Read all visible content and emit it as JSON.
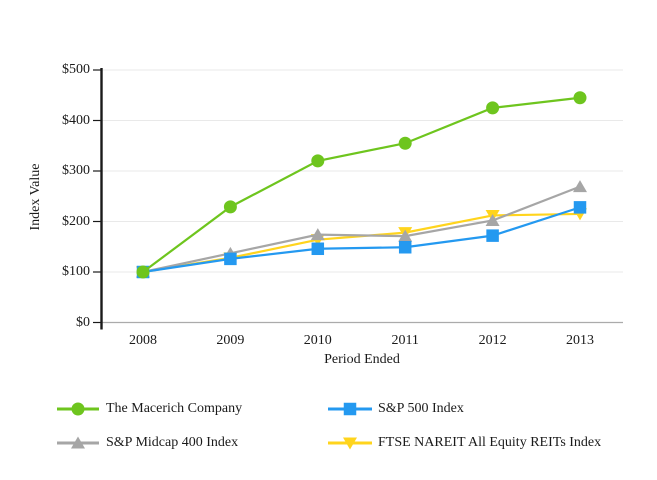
{
  "page": {
    "background": "#FFFFFF"
  },
  "chart_data": {
    "type": "line",
    "title": "",
    "xlabel": "Period Ended",
    "ylabel": "Index Value",
    "categories": [
      "2008",
      "2009",
      "2010",
      "2011",
      "2012",
      "2013"
    ],
    "ylim": [
      0,
      500
    ],
    "yticks": [
      0,
      100,
      200,
      300,
      400,
      500
    ],
    "ytick_labels": [
      "$0",
      "$100",
      "$200",
      "$300",
      "$400",
      "$500"
    ],
    "grid": true,
    "legend_position": "bottom",
    "axis_color": "#1A1A1A",
    "gridline_color": "#E9E9E9",
    "baseline_color": "#ABABAB",
    "series": [
      {
        "name": "The Macerich Company",
        "marker": "circle",
        "color": "#6EC51E",
        "values": [
          100,
          229,
          320,
          355,
          425,
          445
        ]
      },
      {
        "name": "S&P 500 Index",
        "marker": "square",
        "color": "#2499F0",
        "values": [
          100,
          126,
          146,
          149,
          172,
          228
        ]
      },
      {
        "name": "S&P Midcap 400 Index",
        "marker": "triangle-up",
        "color": "#A6A6A6",
        "values": [
          100,
          137,
          174,
          171,
          202,
          269
        ]
      },
      {
        "name": "FTSE NAREIT All Equity REITs Index",
        "marker": "triangle-down",
        "color": "#FFD41D",
        "values": [
          100,
          128,
          164,
          178,
          212,
          215
        ]
      }
    ]
  }
}
